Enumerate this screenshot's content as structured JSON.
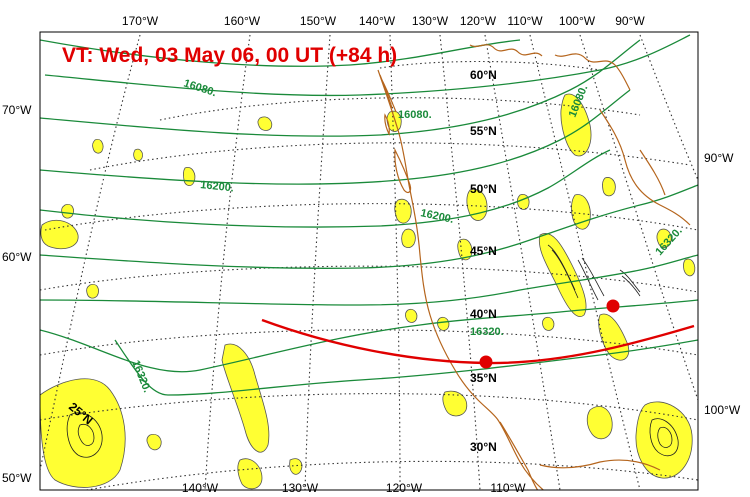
{
  "title": "VT:  Wed, 03 May 06, 00 UT (+84 h)",
  "colors": {
    "contour": "#1a8a3a",
    "coast": "#b5651d",
    "fill": "#ffff33",
    "fill_edge": "#555555",
    "red": "#e00000",
    "grid": "#333333"
  },
  "top_ticks": [
    "170°W",
    "160°W",
    "150°W",
    "140°W",
    "130°W",
    "120°W",
    "110°W",
    "100°W",
    "90°W"
  ],
  "bottom_ticks": [
    "140°W",
    "130°W",
    "120°W",
    "110°W"
  ],
  "left_ticks": [
    "70°W",
    "60°W",
    "50°W"
  ],
  "right_ticks": [
    "90°W",
    "100°W"
  ],
  "lat_labels": [
    "60°N",
    "55°N",
    "50°N",
    "45°N",
    "40°N",
    "35°N",
    "30°N",
    "25°N"
  ],
  "contour_labels": [
    "16080.",
    "16080.",
    "16080.",
    "16200.",
    "16200.",
    "16320.",
    "16320.",
    "16320."
  ]
}
